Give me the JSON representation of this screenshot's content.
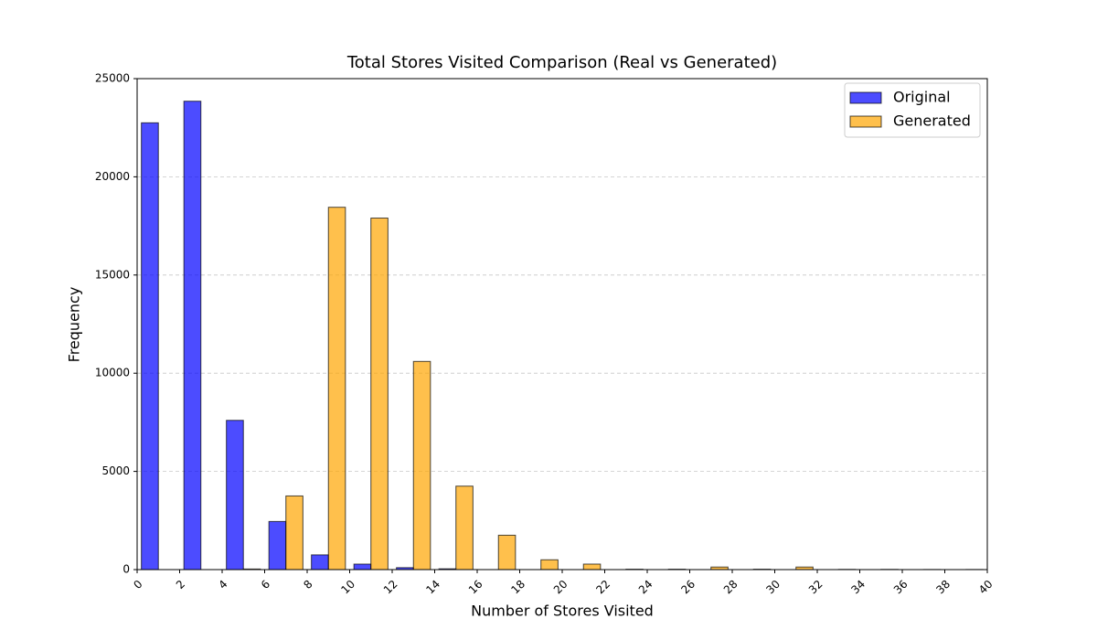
{
  "chart_data": {
    "type": "histogram",
    "title": "Total Stores Visited Comparison (Real vs Generated)",
    "x_label": "Number of Stores Visited",
    "y_label": "Frequency",
    "bins": [
      0,
      2,
      4,
      6,
      8,
      10,
      12,
      14,
      16,
      18,
      20,
      22,
      24,
      26,
      28,
      30,
      32,
      34,
      36,
      38,
      40
    ],
    "series": [
      {
        "name": "Original",
        "color": "blue",
        "values": [
          22750,
          23850,
          7600,
          2450,
          750,
          280,
          100,
          40,
          0,
          0,
          0,
          0,
          0,
          0,
          0,
          0,
          0,
          0,
          0,
          0
        ]
      },
      {
        "name": "Generated",
        "color": "orange",
        "values": [
          0,
          0,
          30,
          3750,
          18450,
          17900,
          10600,
          4250,
          1750,
          500,
          280,
          20,
          20,
          130,
          20,
          130,
          10,
          10,
          5,
          5
        ]
      }
    ],
    "xlim": [
      0,
      40
    ],
    "xticks": [
      0,
      2,
      4,
      6,
      8,
      10,
      12,
      14,
      16,
      18,
      20,
      22,
      24,
      26,
      28,
      30,
      32,
      34,
      36,
      38,
      40
    ],
    "ylim": [
      0,
      25000
    ],
    "yticks": [
      0,
      5000,
      10000,
      15000,
      20000,
      25000
    ],
    "grid": "y",
    "legend": "upper right"
  }
}
